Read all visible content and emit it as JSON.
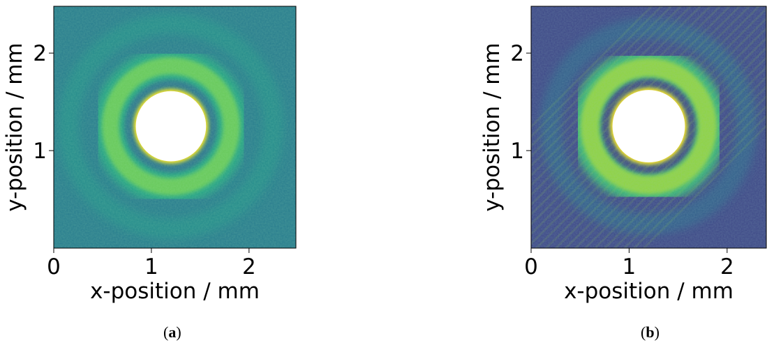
{
  "figure": {
    "captions": [
      "(a)",
      "(b)"
    ],
    "caption_letters": [
      "a",
      "b"
    ]
  },
  "colormap": {
    "name": "viridis",
    "saturated": "#ffffff"
  },
  "chart_data": [
    {
      "type": "heatmap",
      "panel": "a",
      "title": "",
      "xlabel": "x-position / mm",
      "ylabel": "y-position / mm",
      "xlim": [
        0,
        2.48
      ],
      "ylim": [
        0,
        2.48
      ],
      "xticks": [
        0,
        1,
        2
      ],
      "yticks": [
        1,
        2
      ],
      "grid": false,
      "colormap": "viridis",
      "features": {
        "saturated_disk": {
          "center_mm": [
            1.2,
            1.25
          ],
          "radius_mm": 0.36
        },
        "ring": {
          "center_mm": [
            1.2,
            1.25
          ],
          "radius_mm": 0.62,
          "width_mm": 0.22,
          "peak_level": 0.78
        },
        "outer_ring": {
          "radius_mm": 1.05,
          "level": 0.45
        },
        "background_level": 0.42,
        "noise": 0.05
      }
    },
    {
      "type": "heatmap",
      "panel": "b",
      "title": "",
      "xlabel": "x-position / mm",
      "ylabel": "y-position / mm",
      "xlim": [
        0,
        2.4
      ],
      "ylim": [
        0,
        2.48
      ],
      "xticks": [
        0,
        1,
        2
      ],
      "yticks": [
        1,
        2
      ],
      "grid": false,
      "colormap": "viridis",
      "features": {
        "saturated_disk": {
          "center_mm": [
            1.2,
            1.25
          ],
          "radius_mm": 0.37
        },
        "ring": {
          "center_mm": [
            1.2,
            1.25
          ],
          "radius_mm": 0.6,
          "width_mm": 0.24,
          "peak_level": 0.85
        },
        "outer_ring": {
          "radius_mm": 1.0,
          "level": 0.3
        },
        "background_level": 0.22,
        "noise": 0.09,
        "fringes": true
      }
    }
  ]
}
